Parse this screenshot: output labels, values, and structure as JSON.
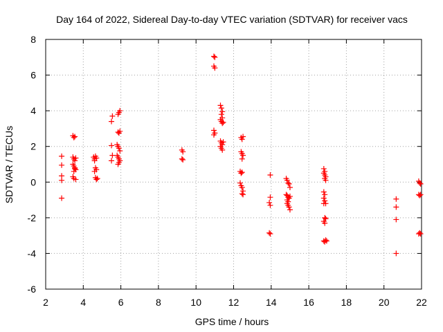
{
  "chart_data": {
    "type": "scatter",
    "title": "Day 164 of 2022, Sidereal Day-to-day VTEC variation (SDTVAR) for receiver vacs",
    "xlabel": "GPS time / hours",
    "ylabel": "SDTVAR / TECUs",
    "xlim": [
      2,
      22
    ],
    "ylim": [
      -6,
      8
    ],
    "xticks": [
      2,
      4,
      6,
      8,
      10,
      12,
      14,
      16,
      18,
      20,
      22
    ],
    "yticks": [
      -6,
      -4,
      -2,
      0,
      2,
      4,
      6,
      8
    ],
    "grid": true,
    "marker": "+",
    "color": "#ff0000",
    "series": [
      {
        "name": "SDTVAR",
        "points": [
          [
            2.85,
            1.45
          ],
          [
            2.85,
            0.95
          ],
          [
            2.85,
            0.35
          ],
          [
            2.85,
            0.1
          ],
          [
            2.85,
            -0.9
          ],
          [
            3.45,
            2.6
          ],
          [
            3.5,
            2.5
          ],
          [
            3.55,
            2.55
          ],
          [
            3.45,
            1.4
          ],
          [
            3.5,
            1.3
          ],
          [
            3.55,
            1.2
          ],
          [
            3.6,
            1.35
          ],
          [
            3.45,
            1.0
          ],
          [
            3.5,
            0.9
          ],
          [
            3.55,
            0.8
          ],
          [
            3.6,
            0.7
          ],
          [
            3.5,
            0.6
          ],
          [
            3.55,
            0.75
          ],
          [
            3.45,
            0.3
          ],
          [
            3.5,
            0.2
          ],
          [
            3.6,
            0.15
          ],
          [
            4.55,
            1.4
          ],
          [
            4.6,
            1.3
          ],
          [
            4.65,
            1.45
          ],
          [
            4.7,
            1.35
          ],
          [
            4.6,
            1.2
          ],
          [
            4.65,
            0.8
          ],
          [
            4.7,
            0.7
          ],
          [
            4.6,
            0.6
          ],
          [
            4.65,
            0.25
          ],
          [
            4.7,
            0.15
          ],
          [
            4.75,
            0.2
          ],
          [
            5.5,
            3.4
          ],
          [
            5.55,
            3.7
          ],
          [
            5.5,
            2.05
          ],
          [
            5.55,
            1.5
          ],
          [
            5.5,
            1.2
          ],
          [
            5.85,
            3.8
          ],
          [
            5.9,
            3.9
          ],
          [
            5.95,
            4.0
          ],
          [
            5.85,
            2.8
          ],
          [
            5.9,
            2.75
          ],
          [
            5.95,
            2.85
          ],
          [
            5.8,
            2.1
          ],
          [
            5.85,
            2.0
          ],
          [
            5.9,
            1.9
          ],
          [
            5.95,
            1.75
          ],
          [
            5.8,
            1.5
          ],
          [
            5.85,
            1.4
          ],
          [
            5.9,
            1.3
          ],
          [
            5.95,
            1.2
          ],
          [
            5.85,
            1.0
          ],
          [
            5.9,
            1.1
          ],
          [
            9.25,
            1.8
          ],
          [
            9.3,
            1.7
          ],
          [
            9.25,
            1.3
          ],
          [
            9.3,
            1.25
          ],
          [
            10.95,
            7.05
          ],
          [
            11.0,
            7.0
          ],
          [
            10.95,
            6.5
          ],
          [
            11.0,
            6.4
          ],
          [
            10.95,
            2.9
          ],
          [
            11.0,
            2.75
          ],
          [
            10.95,
            2.65
          ],
          [
            11.3,
            4.3
          ],
          [
            11.35,
            4.15
          ],
          [
            11.4,
            3.95
          ],
          [
            11.35,
            3.8
          ],
          [
            11.4,
            3.6
          ],
          [
            11.3,
            3.5
          ],
          [
            11.35,
            3.4
          ],
          [
            11.4,
            3.3
          ],
          [
            11.45,
            3.35
          ],
          [
            11.3,
            2.3
          ],
          [
            11.35,
            2.2
          ],
          [
            11.4,
            2.1
          ],
          [
            11.3,
            2.0
          ],
          [
            11.35,
            1.9
          ],
          [
            11.4,
            1.8
          ],
          [
            11.45,
            2.25
          ],
          [
            12.4,
            2.5
          ],
          [
            12.45,
            2.4
          ],
          [
            12.5,
            2.55
          ],
          [
            12.4,
            1.7
          ],
          [
            12.45,
            1.6
          ],
          [
            12.5,
            1.5
          ],
          [
            12.45,
            1.3
          ],
          [
            12.35,
            0.6
          ],
          [
            12.4,
            0.5
          ],
          [
            12.45,
            0.55
          ],
          [
            12.35,
            -0.05
          ],
          [
            12.4,
            -0.2
          ],
          [
            12.45,
            -0.3
          ],
          [
            12.5,
            -0.5
          ],
          [
            12.45,
            -0.65
          ],
          [
            12.5,
            -0.7
          ],
          [
            13.95,
            0.4
          ],
          [
            13.95,
            -0.85
          ],
          [
            13.9,
            -1.15
          ],
          [
            13.95,
            -1.3
          ],
          [
            13.9,
            -2.85
          ],
          [
            13.95,
            -2.9
          ],
          [
            14.8,
            0.2
          ],
          [
            14.85,
            0.1
          ],
          [
            14.9,
            -0.05
          ],
          [
            14.95,
            -0.1
          ],
          [
            15.0,
            -0.3
          ],
          [
            14.8,
            -0.7
          ],
          [
            14.85,
            -0.75
          ],
          [
            14.9,
            -0.85
          ],
          [
            14.95,
            -0.9
          ],
          [
            15.0,
            -0.8
          ],
          [
            14.85,
            -1.0
          ],
          [
            14.9,
            -1.1
          ],
          [
            14.85,
            -1.2
          ],
          [
            14.9,
            -1.3
          ],
          [
            14.95,
            -1.4
          ],
          [
            15.0,
            -1.55
          ],
          [
            16.8,
            0.75
          ],
          [
            16.85,
            0.6
          ],
          [
            16.8,
            0.5
          ],
          [
            16.85,
            0.4
          ],
          [
            16.9,
            0.3
          ],
          [
            16.85,
            0.2
          ],
          [
            16.9,
            0.1
          ],
          [
            16.8,
            -0.55
          ],
          [
            16.85,
            -0.7
          ],
          [
            16.8,
            -0.9
          ],
          [
            16.85,
            -1.05
          ],
          [
            16.9,
            -1.2
          ],
          [
            16.8,
            -1.2
          ],
          [
            16.85,
            -2.0
          ],
          [
            16.9,
            -2.05
          ],
          [
            16.8,
            -2.2
          ],
          [
            16.85,
            -2.3
          ],
          [
            16.8,
            -3.3
          ],
          [
            16.85,
            -3.35
          ],
          [
            16.9,
            -3.25
          ],
          [
            16.95,
            -3.3
          ],
          [
            20.65,
            -0.95
          ],
          [
            20.65,
            -1.4
          ],
          [
            20.65,
            -2.1
          ],
          [
            20.65,
            -4.0
          ],
          [
            21.85,
            0.05
          ],
          [
            21.9,
            -0.05
          ],
          [
            21.95,
            -0.1
          ],
          [
            21.85,
            -0.7
          ],
          [
            21.9,
            -0.75
          ],
          [
            21.95,
            -0.7
          ],
          [
            21.9,
            -2.85
          ],
          [
            21.95,
            -2.9
          ],
          [
            21.85,
            -2.9
          ]
        ]
      }
    ]
  }
}
